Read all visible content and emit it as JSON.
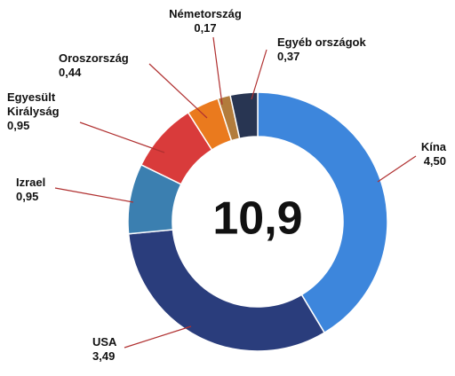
{
  "chart_data": {
    "type": "donut",
    "center_text": "10,9",
    "categories": [
      "Kína",
      "USA",
      "Izrael",
      "Egyesült Királyság",
      "Oroszország",
      "Németország",
      "Egyéb országok"
    ],
    "values": [
      4.5,
      3.49,
      0.95,
      0.95,
      0.44,
      0.17,
      0.37
    ],
    "value_labels": [
      "4,50",
      "3,49",
      "0,95",
      "0,95",
      "0,44",
      "0,17",
      "0,37"
    ],
    "colors": [
      "#3d86dc",
      "#2a3d7c",
      "#3b7fb0",
      "#d93b3b",
      "#ea7a1e",
      "#b27c3c",
      "#283552"
    ]
  }
}
